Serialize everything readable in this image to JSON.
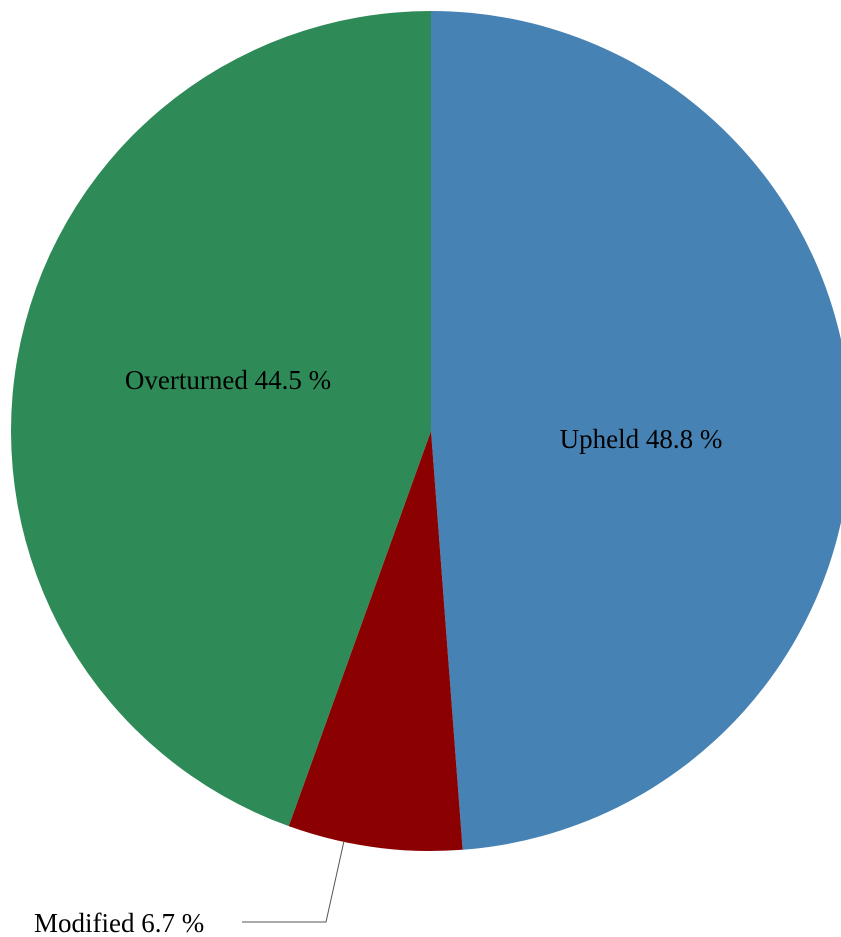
{
  "chart_data": {
    "type": "pie",
    "slices": [
      {
        "label": "Upheld",
        "value": 48.8,
        "display": "Upheld 48.8 %",
        "color": "#4682B4"
      },
      {
        "label": "Modified",
        "value": 6.7,
        "display": "Modified 6.7 %",
        "color": "#8B0000"
      },
      {
        "label": "Overturned",
        "value": 44.5,
        "display": "Overturned 44.5 %",
        "color": "#2E8B57"
      }
    ],
    "unit": "%",
    "start": "12 o'clock",
    "direction": "clockwise"
  }
}
